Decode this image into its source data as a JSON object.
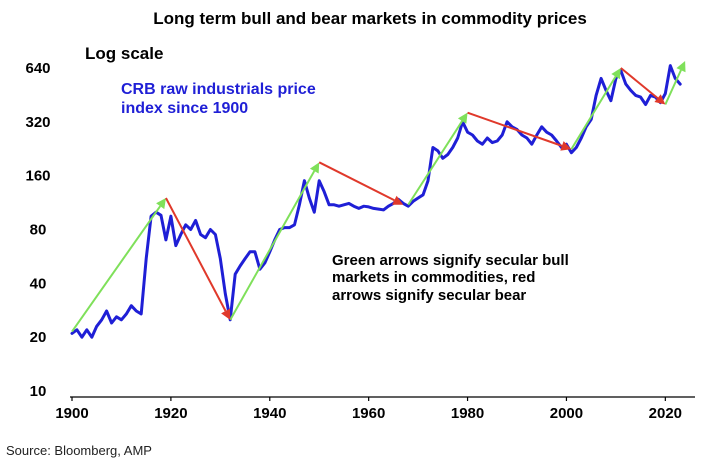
{
  "chart_data": {
    "type": "line",
    "title": "Long term bull and bear markets in commodity prices",
    "scale_note": "Log scale",
    "series_label_lines": [
      "CRB raw industrials price",
      "index since 1900"
    ],
    "annotation_lines": [
      "Green arrows signify secular bull",
      "markets in commodities, red",
      "arrows signify secular bear"
    ],
    "source": "Source: Bloomberg, AMP",
    "xlabel": "",
    "ylabel": "",
    "x_ticks": [
      1900,
      1920,
      1940,
      1960,
      1980,
      2000,
      2020
    ],
    "y_ticks": [
      10,
      20,
      40,
      80,
      160,
      320,
      640
    ],
    "y_scale": "log2",
    "xlim": [
      1900,
      2026
    ],
    "ylim": [
      10,
      800
    ],
    "colors": {
      "series": "#1f1fd6",
      "bull": "#7fe05a",
      "bear": "#e0392b",
      "axis": "#000000"
    },
    "series": [
      {
        "name": "CRB raw industrials price index since 1900",
        "x": [
          1900,
          1901,
          1902,
          1903,
          1904,
          1905,
          1906,
          1907,
          1908,
          1909,
          1910,
          1911,
          1912,
          1913,
          1914,
          1915,
          1916,
          1917,
          1918,
          1919,
          1920,
          1921,
          1922,
          1923,
          1924,
          1925,
          1926,
          1927,
          1928,
          1929,
          1930,
          1931,
          1932,
          1933,
          1934,
          1935,
          1936,
          1937,
          1938,
          1939,
          1940,
          1941,
          1942,
          1943,
          1944,
          1945,
          1946,
          1947,
          1948,
          1949,
          1950,
          1951,
          1952,
          1953,
          1954,
          1955,
          1956,
          1957,
          1958,
          1959,
          1960,
          1961,
          1962,
          1963,
          1964,
          1965,
          1966,
          1967,
          1968,
          1969,
          1970,
          1971,
          1972,
          1973,
          1974,
          1975,
          1976,
          1977,
          1978,
          1979,
          1980,
          1981,
          1982,
          1983,
          1984,
          1985,
          1986,
          1987,
          1988,
          1989,
          1990,
          1991,
          1992,
          1993,
          1994,
          1995,
          1996,
          1997,
          1998,
          1999,
          2000,
          2001,
          2002,
          2003,
          2004,
          2005,
          2006,
          2007,
          2008,
          2009,
          2010,
          2011,
          2012,
          2013,
          2014,
          2015,
          2016,
          2017,
          2018,
          2019,
          2020,
          2021,
          2022,
          2023
        ],
        "values": [
          21,
          22,
          20,
          22,
          20,
          23,
          25,
          28,
          24,
          26,
          25,
          27,
          30,
          28,
          27,
          55,
          95,
          100,
          96,
          70,
          95,
          65,
          75,
          85,
          80,
          90,
          75,
          72,
          80,
          75,
          55,
          35,
          25,
          45,
          50,
          55,
          60,
          60,
          48,
          52,
          60,
          70,
          80,
          82,
          82,
          85,
          110,
          150,
          120,
          100,
          150,
          130,
          110,
          110,
          108,
          110,
          112,
          108,
          105,
          108,
          107,
          105,
          104,
          103,
          108,
          112,
          118,
          112,
          108,
          115,
          120,
          125,
          150,
          230,
          220,
          200,
          210,
          230,
          260,
          320,
          280,
          270,
          250,
          240,
          260,
          245,
          250,
          270,
          320,
          300,
          290,
          270,
          260,
          240,
          270,
          300,
          280,
          270,
          250,
          230,
          240,
          215,
          230,
          260,
          300,
          330,
          450,
          560,
          480,
          420,
          560,
          620,
          520,
          480,
          450,
          440,
          400,
          450,
          440,
          410,
          460,
          660,
          560,
          520
        ]
      }
    ],
    "bull_arrows": [
      {
        "from": [
          1900,
          21.5
        ],
        "to": [
          1919,
          120
        ]
      },
      {
        "from": [
          1932,
          25
        ],
        "to": [
          1950,
          190
        ]
      },
      {
        "from": [
          1968,
          110
        ],
        "to": [
          1980,
          360
        ]
      },
      {
        "from": [
          2001,
          225
        ],
        "to": [
          2011,
          640
        ]
      },
      {
        "from": [
          2020,
          400
        ],
        "to": [
          2024,
          700
        ]
      }
    ],
    "bear_arrows": [
      {
        "from": [
          1919,
          120
        ],
        "to": [
          1932,
          25
        ]
      },
      {
        "from": [
          1950,
          190
        ],
        "to": [
          1967,
          110
        ]
      },
      {
        "from": [
          1980,
          360
        ],
        "to": [
          2001,
          225
        ]
      },
      {
        "from": [
          2011,
          640
        ],
        "to": [
          2020,
          400
        ]
      }
    ]
  }
}
